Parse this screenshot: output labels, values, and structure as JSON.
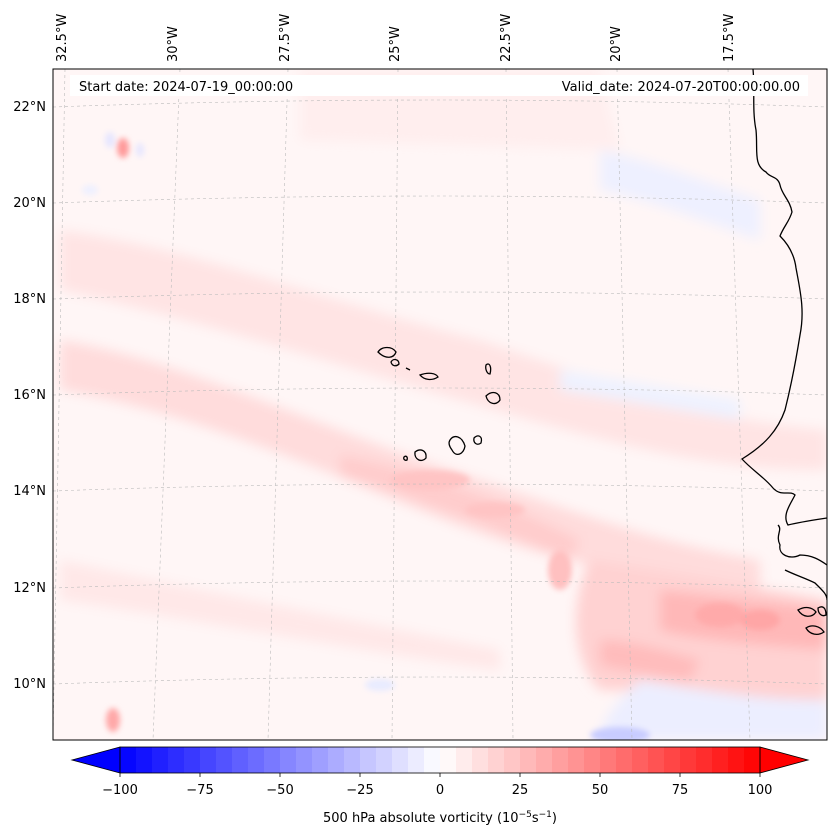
{
  "map": {
    "start_date": "Start date: 2024-07-19_00:00:00",
    "valid_date": "Valid_date: 2024-07-20T00:00:00.00",
    "lon_labels": [
      "32.5°W",
      "30°W",
      "27.5°W",
      "25°W",
      "22.5°W",
      "20°W",
      "17.5°W"
    ],
    "lat_labels": [
      "22°N",
      "20°N",
      "18°N",
      "16°N",
      "14°N",
      "12°N",
      "10°N"
    ],
    "gridlines": "dashed"
  },
  "colorbar": {
    "label": "500 hPa absolute vorticity",
    "units_base": "10",
    "units_exp1": "−5",
    "units_s": "s",
    "units_exp2": "−1",
    "min": -100,
    "max": 100,
    "ticks": [
      "−100",
      "−75",
      "−50",
      "−25",
      "0",
      "25",
      "50",
      "75",
      "100"
    ],
    "colormap": "bwr",
    "extend": "both"
  },
  "colors": {
    "negative_max": "#0000ff",
    "zero": "#ffffff",
    "positive_max": "#ff0000",
    "coastline": "#000000",
    "gridline": "#bbbbbb"
  }
}
